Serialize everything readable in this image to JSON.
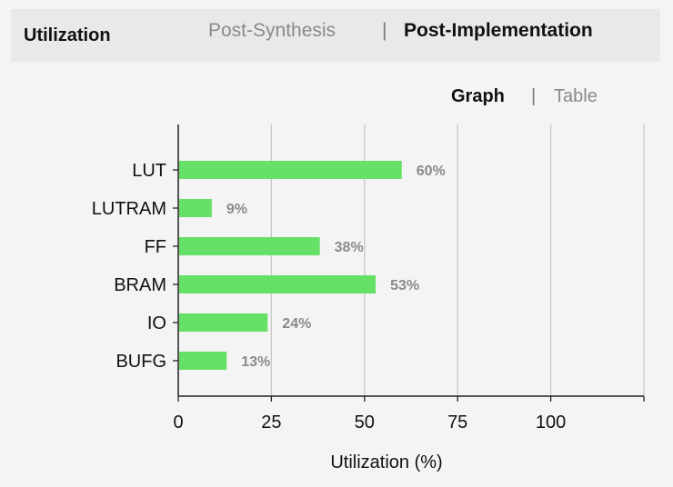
{
  "header": {
    "title": "Utilization",
    "tabs": [
      {
        "label": "Post-Synthesis",
        "active": false
      },
      {
        "label": "Post-Implementation",
        "active": true
      }
    ],
    "separator": "|"
  },
  "view_toggle": {
    "graph_label": "Graph",
    "table_label": "Table",
    "active": "Graph",
    "separator": "|"
  },
  "colors": {
    "bar": "#66e066",
    "grid": "#c8c8c8",
    "axis": "#222222"
  },
  "chart_data": {
    "type": "bar",
    "orientation": "horizontal",
    "categories": [
      "LUT",
      "LUTRAM",
      "FF",
      "BRAM",
      "IO",
      "BUFG"
    ],
    "values": [
      60,
      9,
      38,
      53,
      24,
      13
    ],
    "value_labels": [
      "60%",
      "9%",
      "38%",
      "53%",
      "24%",
      "13%"
    ],
    "xlabel": "Utilization (%)",
    "xticks": [
      0,
      25,
      50,
      75,
      100
    ],
    "xlim": [
      0,
      125
    ],
    "grid": true
  }
}
